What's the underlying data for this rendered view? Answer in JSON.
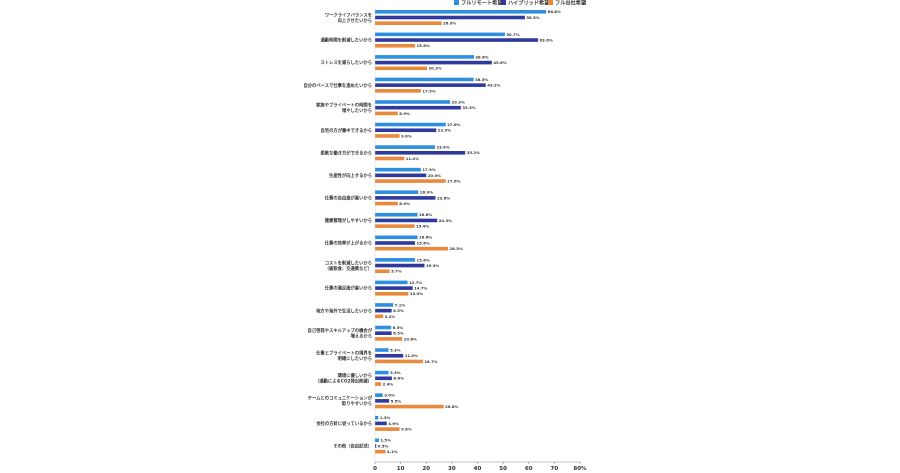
{
  "chart_data": {
    "type": "bar",
    "orientation": "horizontal",
    "title": "",
    "xlabel": "",
    "ylabel": "",
    "xlim": [
      0,
      80
    ],
    "ticks": [
      0,
      10,
      20,
      30,
      40,
      50,
      60,
      70,
      80
    ],
    "tick_labels": [
      "0",
      "10",
      "20",
      "30",
      "40",
      "50",
      "60",
      "70",
      "80%"
    ],
    "value_suffix": "%",
    "legend_position": "top-right",
    "grid": false,
    "categories": [
      [
        "ワークライフバランスを",
        "向上させたいから"
      ],
      [
        "通勤時間を削減したいから"
      ],
      [
        "ストレスを減らしたいから"
      ],
      [
        "自分のペースで仕事を進めたいから"
      ],
      [
        "家族やプライベートの時間を",
        "増やしたいから"
      ],
      [
        "自宅の方が集中できるから"
      ],
      [
        "柔軟な働き方ができるから"
      ],
      [
        "生産性が向上するから"
      ],
      [
        "仕事の自由度が高いから"
      ],
      [
        "健康管理がしやすいから"
      ],
      [
        "仕事の効率が上がるから"
      ],
      [
        "コストを削減したいから",
        "（昼飲食、交通費など）"
      ],
      [
        "仕事の満足度が高いから"
      ],
      [
        "地方や海外で生活したいから"
      ],
      [
        "自己啓発やスキルアップの機会が",
        "増えるから"
      ],
      [
        "仕事とプライベートの境界を",
        "明確にしたいから"
      ],
      [
        "環境に優しいから",
        "（通勤によるCO2排出削減）"
      ],
      [
        "チームとのコミュニケーションが",
        "取りやすいから"
      ],
      [
        "会社の方針に従っているから"
      ],
      [
        "その他（自由記述）"
      ]
    ],
    "series": [
      {
        "name": "フルリモート希望",
        "color": "#2e8fe0",
        "values": [
          66.8,
          50.7,
          38.6,
          38.5,
          29.3,
          27.6,
          23.4,
          17.9,
          16.9,
          16.6,
          16.6,
          15.6,
          12.7,
          7.1,
          6.3,
          5.3,
          5.3,
          3.0,
          1.3,
          1.5
        ]
      },
      {
        "name": "ハイブリッド希望",
        "color": "#2f3a9e",
        "values": [
          58.5,
          63.6,
          45.6,
          43.2,
          33.5,
          23.9,
          35.2,
          20.0,
          23.6,
          24.3,
          15.6,
          19.3,
          14.7,
          6.5,
          6.5,
          11.0,
          6.6,
          5.5,
          4.6,
          0.5
        ]
      },
      {
        "name": "フル出社希望",
        "color": "#e8893b",
        "values": [
          26.0,
          15.6,
          20.3,
          17.9,
          8.9,
          9.6,
          11.4,
          27.6,
          8.9,
          15.4,
          28.5,
          5.7,
          13.0,
          3.2,
          10.6,
          18.7,
          2.4,
          26.8,
          9.6,
          4.1
        ]
      }
    ]
  }
}
